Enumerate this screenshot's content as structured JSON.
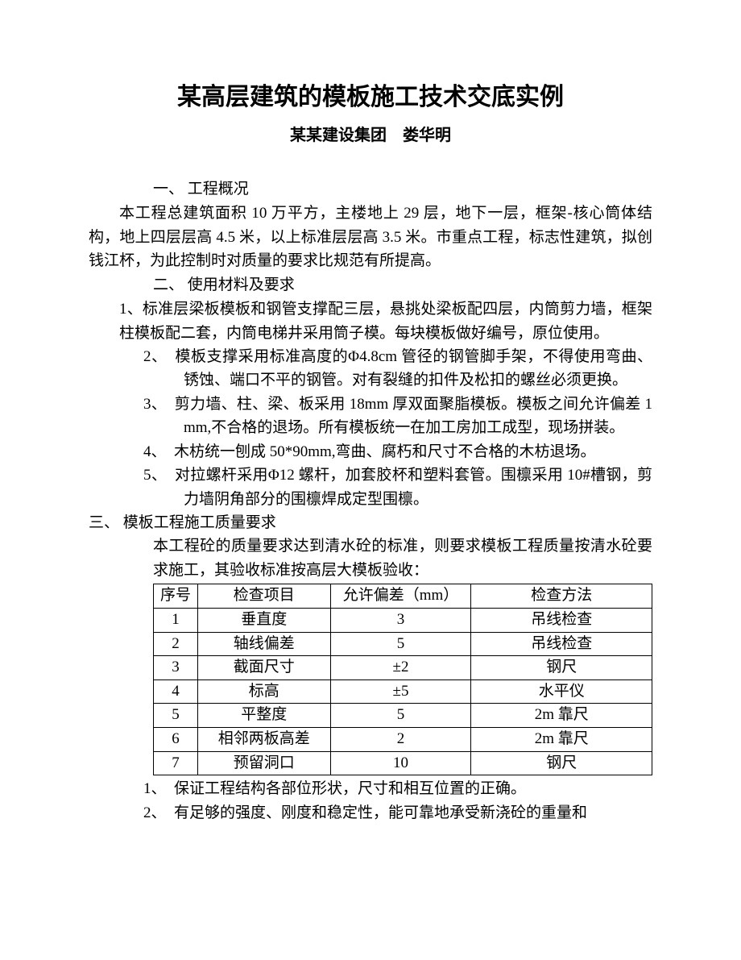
{
  "title": "某高层建筑的模板施工技术交底实例",
  "subtitle": "某某建设集团　娄华明",
  "section1": {
    "heading": "一、 工程概况",
    "para": "本工程总建筑面积 10 万平方，主楼地上 29 层，地下一层，框架-核心筒体结构，地上四层层高 4.5 米，以上标准层层高 3.5 米。市重点工程，标志性建筑，拟创钱江杯，为此控制时对质量的要求比规范有所提高。"
  },
  "section2": {
    "heading": "二、 使用材料及要求",
    "item1": "1、标准层梁板模板和钢管支撑配三层，悬挑处梁板配四层，内筒剪力墙，框架柱模板配二套，内筒电梯井采用筒子模。每块模板做好编号，原位使用。",
    "item2": "2、　模板支撑采用标准高度的Φ4.8cm 管径的钢管脚手架，不得使用弯曲、锈蚀、端口不平的钢管。对有裂缝的扣件及松扣的螺丝必须更换。",
    "item3": "3、　剪力墙、柱、梁、板采用 18mm 厚双面聚脂模板。模板之间允许偏差 1 mm,不合格的退场。所有模板统一在加工房加工成型，现场拼装。",
    "item4": "4、　木枋统一刨成 50*90mm,弯曲、腐朽和尺寸不合格的木枋退场。",
    "item5": "5、　对拉螺杆采用Φ12 螺杆，加套胶杯和塑料套管。围檩采用 10#槽钢，剪力墙阴角部分的围檩焊成定型围檩。"
  },
  "section3": {
    "heading": "三、 模板工程施工质量要求",
    "para": "本工程砼的质量要求达到清水砼的标准，则要求模板工程质量按清水砼要求施工，其验收标准按高层大模板验收：",
    "after1": "1、　保证工程结构各部位形状，尺寸和相互位置的正确。",
    "after2": "2、　有足够的强度、刚度和稳定性，能可靠地承受新浇砼的重量和"
  },
  "table": {
    "headers": [
      "序号",
      "检查项目",
      "允许偏差（mm）",
      "检查方法"
    ],
    "rows": [
      [
        "1",
        "垂直度",
        "3",
        "吊线检查"
      ],
      [
        "2",
        "轴线偏差",
        "5",
        "吊线检查"
      ],
      [
        "3",
        "截面尺寸",
        "±2",
        "钢尺"
      ],
      [
        "4",
        "标高",
        "±5",
        "水平仪"
      ],
      [
        "5",
        "平整度",
        "5",
        "2m 靠尺"
      ],
      [
        "6",
        "相邻两板高差",
        "2",
        "2m 靠尺"
      ],
      [
        "7",
        "预留洞口",
        "10",
        "钢尺"
      ]
    ]
  }
}
